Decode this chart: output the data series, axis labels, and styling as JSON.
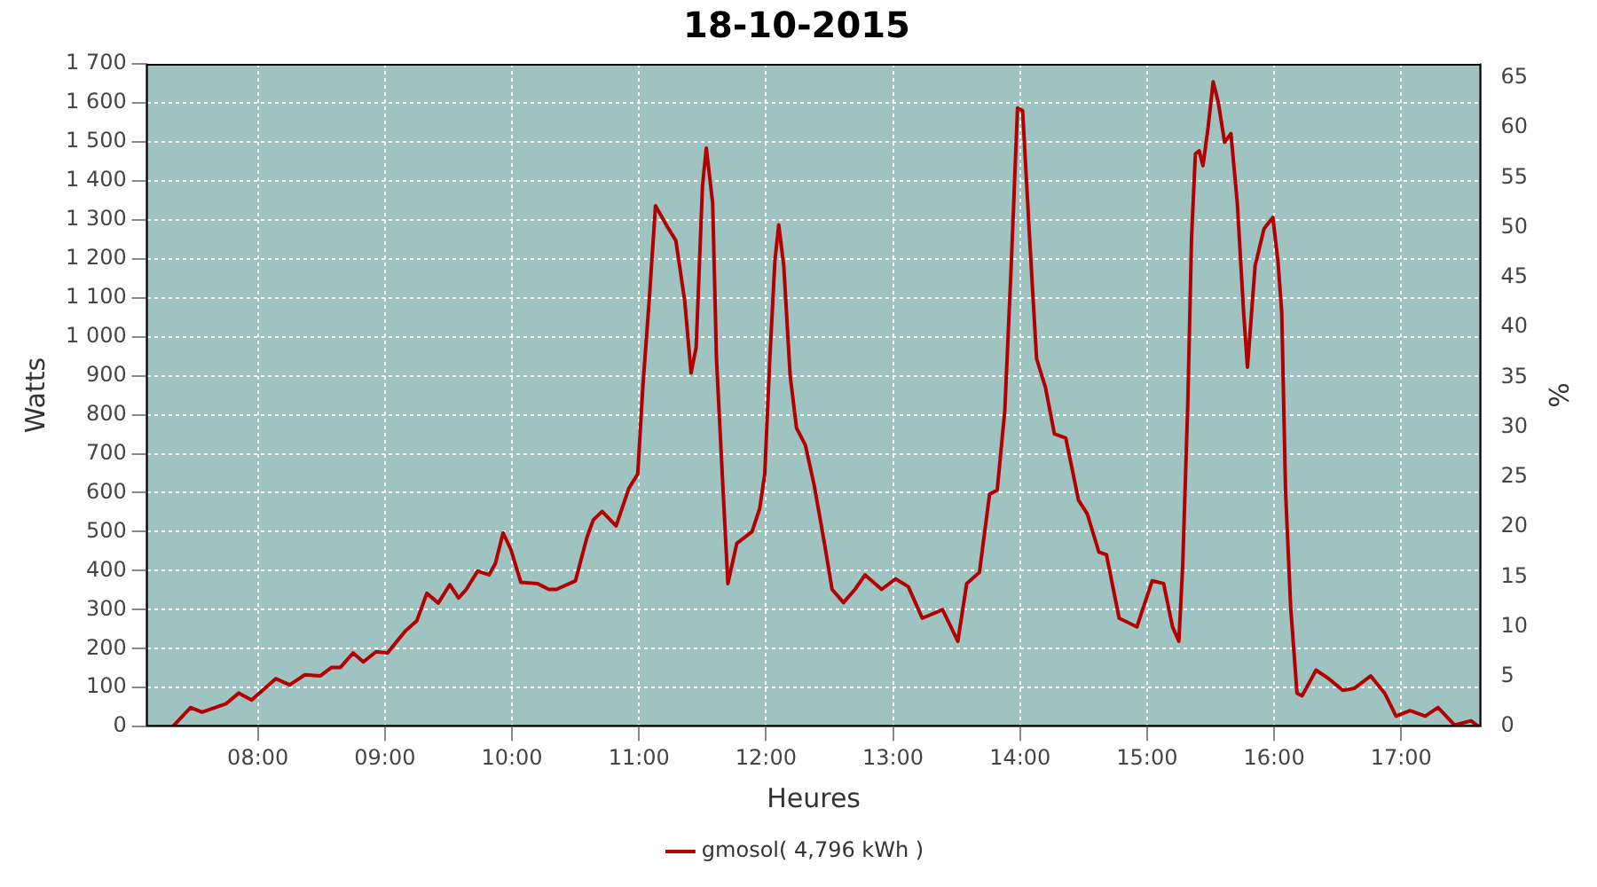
{
  "chart_data": {
    "type": "line",
    "title": "18-10-2015",
    "xlabel": "Heures",
    "ylabel": "Watts",
    "y2label": "%",
    "xlim": [
      7.12,
      17.63
    ],
    "xticks": [
      {
        "value": 8,
        "label": "08:00"
      },
      {
        "value": 9,
        "label": "09:00"
      },
      {
        "value": 10,
        "label": "10:00"
      },
      {
        "value": 11,
        "label": "11:00"
      },
      {
        "value": 12,
        "label": "12:00"
      },
      {
        "value": 13,
        "label": "13:00"
      },
      {
        "value": 14,
        "label": "14:00"
      },
      {
        "value": 15,
        "label": "15:00"
      },
      {
        "value": 16,
        "label": "16:00"
      },
      {
        "value": 17,
        "label": "17:00"
      }
    ],
    "ylim": [
      0,
      1700
    ],
    "yticks": [
      0,
      100,
      200,
      300,
      400,
      500,
      600,
      700,
      800,
      900,
      {
        "value": 1000,
        "label": "1 000"
      },
      {
        "value": 1100,
        "label": "1 100"
      },
      {
        "value": 1200,
        "label": "1 200"
      },
      {
        "value": 1300,
        "label": "1 300"
      },
      {
        "value": 1400,
        "label": "1 400"
      },
      {
        "value": 1500,
        "label": "1 500"
      },
      {
        "value": 1600,
        "label": "1 600"
      },
      {
        "value": 1700,
        "label": "1 700"
      }
    ],
    "y2lim": [
      0,
      66.4
    ],
    "y2ticks": [
      0,
      5,
      10,
      15,
      20,
      25,
      30,
      35,
      40,
      45,
      50,
      55,
      60,
      65
    ],
    "grid": true,
    "legend": "bottom",
    "marker": "none",
    "line_style": "solid",
    "x": [
      7.33,
      7.47,
      7.56,
      7.75,
      7.85,
      7.95,
      8.14,
      8.25,
      8.37,
      8.49,
      8.58,
      8.65,
      8.75,
      8.83,
      8.93,
      9.02,
      9.16,
      9.25,
      9.33,
      9.42,
      9.51,
      9.58,
      9.64,
      9.73,
      9.82,
      9.87,
      9.93,
      9.99,
      10.07,
      10.2,
      10.29,
      10.35,
      10.5,
      10.59,
      10.64,
      10.71,
      10.82,
      10.92,
      10.99,
      11.03,
      11.08,
      11.13,
      11.22,
      11.29,
      11.36,
      11.41,
      11.45,
      11.5,
      11.53,
      11.58,
      11.61,
      11.66,
      11.7,
      11.77,
      11.89,
      11.95,
      11.99,
      12.03,
      12.07,
      12.1,
      12.14,
      12.19,
      12.24,
      12.31,
      12.38,
      12.46,
      12.52,
      12.61,
      12.7,
      12.78,
      12.91,
      13.02,
      13.12,
      13.23,
      13.39,
      13.51,
      13.58,
      13.68,
      13.76,
      13.82,
      13.88,
      13.93,
      13.98,
      14.02,
      14.08,
      14.13,
      14.2,
      14.27,
      14.36,
      14.46,
      14.53,
      14.62,
      14.68,
      14.78,
      14.92,
      15.04,
      15.13,
      15.2,
      15.25,
      15.28,
      15.32,
      15.35,
      15.38,
      15.41,
      15.44,
      15.48,
      15.52,
      15.56,
      15.61,
      15.66,
      15.71,
      15.76,
      15.79,
      15.85,
      15.92,
      15.99,
      16.03,
      16.06,
      16.09,
      16.13,
      16.18,
      16.22,
      16.33,
      16.43,
      16.54,
      16.63,
      16.76,
      16.87,
      16.96,
      17.07,
      17.19,
      17.29,
      17.42,
      17.55,
      17.61
    ],
    "series": [
      {
        "name": "gmosol( 4,796 kWh )",
        "color": "#b20000",
        "values": [
          0,
          49,
          37,
          59,
          86,
          68,
          123,
          107,
          133,
          130,
          152,
          152,
          189,
          166,
          192,
          189,
          245,
          271,
          342,
          317,
          364,
          330,
          352,
          399,
          389,
          419,
          497,
          456,
          370,
          367,
          352,
          352,
          374,
          485,
          530,
          552,
          515,
          611,
          648,
          870,
          1092,
          1336,
          1284,
          1247,
          1092,
          907,
          973,
          1388,
          1484,
          1343,
          944,
          618,
          367,
          470,
          500,
          559,
          648,
          944,
          1195,
          1287,
          1181,
          900,
          766,
          722,
          618,
          470,
          352,
          318,
          352,
          389,
          352,
          379,
          359,
          278,
          300,
          219,
          367,
          396,
          596,
          607,
          811,
          1181,
          1587,
          1580,
          1225,
          944,
          870,
          751,
          740,
          581,
          545,
          448,
          441,
          278,
          256,
          374,
          367,
          256,
          219,
          411,
          825,
          1255,
          1469,
          1477,
          1439,
          1536,
          1654,
          1602,
          1499,
          1521,
          1343,
          1062,
          922,
          1181,
          1277,
          1306,
          1195,
          1062,
          604,
          308,
          86,
          79,
          145,
          123,
          93,
          98,
          130,
          86,
          27,
          41,
          27,
          49,
          4,
          15,
          0
        ]
      }
    ]
  }
}
